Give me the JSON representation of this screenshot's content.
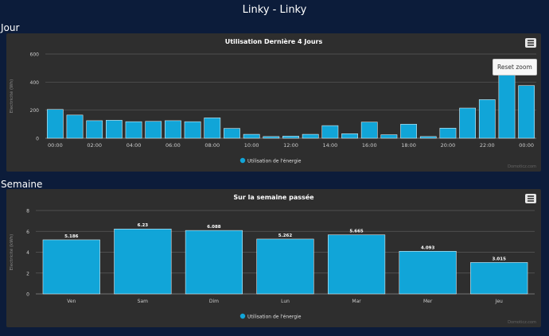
{
  "page": {
    "title": "Linky - Linky"
  },
  "sections": {
    "day_title": "Jour",
    "week_title": "Semaine"
  },
  "day_chart": {
    "reset_zoom_label": "Reset zoom",
    "credits": "Domoticz.com"
  },
  "week_chart": {
    "credits": "Domoticz.com"
  },
  "colors": {
    "bar": "#11a5d8",
    "panel": "#2e2e2e",
    "background": "#0c1c3a"
  },
  "chart_data": [
    {
      "type": "bar",
      "title": "Utilisation Dernière 4 Jours",
      "ylabel": "Electricité (Wh)",
      "ylim": [
        0,
        600
      ],
      "yticks": [
        0,
        200,
        400,
        600
      ],
      "legend": "Utilisation de l'énergie",
      "legend_placement": "bottom-center",
      "grid": true,
      "xtick_labels": [
        "00:00",
        "02:00",
        "04:00",
        "06:00",
        "08:00",
        "10:00",
        "12:00",
        "14:00",
        "16:00",
        "18:00",
        "20:00",
        "22:00",
        "00:00"
      ],
      "values": [
        205,
        165,
        125,
        128,
        118,
        120,
        125,
        118,
        145,
        70,
        28,
        12,
        15,
        28,
        90,
        32,
        115,
        25,
        100,
        12,
        72,
        215,
        275,
        480,
        375
      ]
    },
    {
      "type": "bar",
      "title": "Sur la semaine passée",
      "ylabel": "Electricité (kWh)",
      "ylim": [
        0,
        8
      ],
      "yticks": [
        0,
        2,
        4,
        6,
        8
      ],
      "legend": "Utilisation de l'énergie",
      "legend_placement": "bottom-center",
      "grid": true,
      "categories": [
        "Ven",
        "Sam",
        "Dim",
        "Lun",
        "Mar",
        "Mer",
        "Jeu"
      ],
      "values": [
        5.186,
        6.23,
        6.088,
        5.262,
        5.665,
        4.093,
        3.015
      ],
      "data_labels": [
        "5.186",
        "6.23",
        "6.088",
        "5.262",
        "5.665",
        "4.093",
        "3.015"
      ]
    }
  ]
}
